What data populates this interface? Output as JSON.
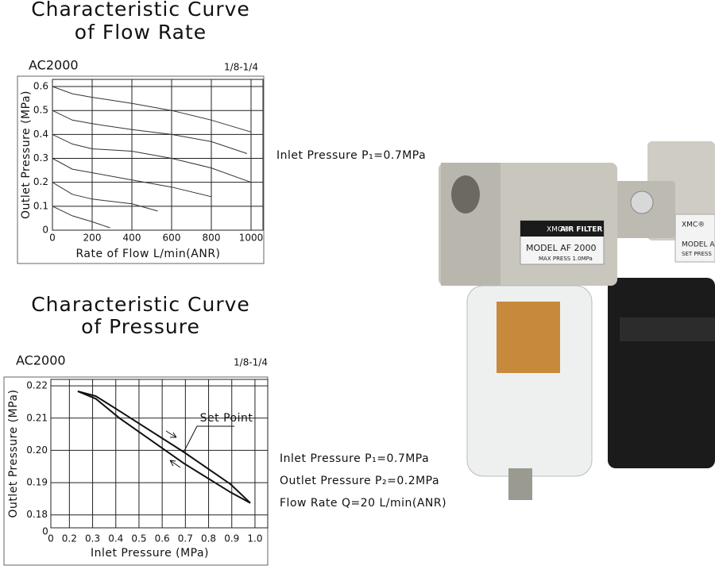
{
  "chart_data": [
    {
      "type": "line",
      "title": [
        "Characteristic Curve",
        "of Flow Rate"
      ],
      "subtitle": "AC2000",
      "note": "1/8-1/4",
      "x_label": "Rate of Flow L/min(ANR)",
      "y_label": "Outlet Pressure (MPa)",
      "xlim": [
        0,
        1060
      ],
      "ylim": [
        0,
        0.63
      ],
      "xticks": [
        0,
        200,
        400,
        600,
        800,
        1000
      ],
      "yticks": [
        0,
        0.1,
        0.2,
        0.3,
        0.4,
        0.5,
        0.6
      ],
      "grid": true,
      "color": "#333333",
      "series": [
        {
          "x": [
            0,
            100,
            200,
            400,
            600,
            800,
            1000
          ],
          "values": [
            0.6,
            0.57,
            0.555,
            0.53,
            0.5,
            0.46,
            0.41
          ]
        },
        {
          "x": [
            0,
            100,
            200,
            400,
            600,
            800,
            980
          ],
          "values": [
            0.5,
            0.46,
            0.445,
            0.42,
            0.4,
            0.37,
            0.32
          ]
        },
        {
          "x": [
            0,
            100,
            200,
            400,
            600,
            800,
            1000
          ],
          "values": [
            0.4,
            0.36,
            0.34,
            0.33,
            0.3,
            0.26,
            0.2
          ]
        },
        {
          "x": [
            0,
            100,
            200,
            400,
            600,
            800
          ],
          "values": [
            0.3,
            0.255,
            0.24,
            0.21,
            0.18,
            0.14
          ]
        },
        {
          "x": [
            0,
            100,
            200,
            400,
            530
          ],
          "values": [
            0.2,
            0.15,
            0.13,
            0.11,
            0.08
          ]
        },
        {
          "x": [
            0,
            100,
            200,
            290
          ],
          "values": [
            0.1,
            0.06,
            0.035,
            0.01
          ]
        }
      ],
      "annotations": [
        "Inlet Pressure P₁=0.7MPa"
      ]
    },
    {
      "type": "line",
      "title": [
        "Characteristic Curve",
        "of Pressure"
      ],
      "subtitle": "AC2000",
      "note": "1/8-1/4",
      "x_label": "Inlet Pressure (MPa)",
      "y_label": "Outlet Pressure (MPa)",
      "xlim": [
        0.12,
        1.055
      ],
      "ylim": [
        0.176,
        0.222
      ],
      "xticks": [
        0.2,
        0.3,
        0.4,
        0.5,
        0.6,
        0.7,
        0.8,
        0.9,
        {
          "value": 1.0,
          "label": "1.0"
        }
      ],
      "yticks": [
        0.18,
        0.19,
        {
          "value": 0.2,
          "label": "0.20"
        },
        0.21,
        0.22
      ],
      "grid": true,
      "color": "#111111",
      "axis_break_labels": [
        "0",
        "0"
      ],
      "series": [
        {
          "x": [
            0.236,
            0.314,
            0.416,
            0.693,
            0.895,
            0.98
          ],
          "values": [
            0.2183,
            0.2168,
            0.2122,
            0.1995,
            0.1895,
            0.1837
          ]
        },
        {
          "x": [
            0.236,
            0.314,
            0.416,
            0.693,
            0.895,
            0.98
          ],
          "values": [
            0.2183,
            0.216,
            0.21,
            0.196,
            0.187,
            0.1837
          ]
        }
      ],
      "set_point_label": "Set Point",
      "annotations": [
        "Inlet Pressure P₁=0.7MPa",
        "Outlet Pressure P₂=0.2MPa",
        "Flow Rate Q=20 L/min(ANR)"
      ]
    }
  ],
  "photo_labels": [
    "XMC®",
    "AIR FILTER",
    "MODEL  AF 2000",
    "MAX PRESS 1.0MPa",
    "XMC®",
    "MODEL  A",
    "SET PRESS"
  ]
}
